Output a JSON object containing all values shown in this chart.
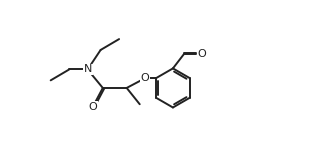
{
  "bg_color": "#ffffff",
  "line_color": "#222222",
  "line_width": 1.4,
  "fig_width": 3.12,
  "fig_height": 1.52,
  "dpi": 100,
  "xlim": [
    0,
    10.5
  ],
  "ylim": [
    0,
    7.0
  ]
}
